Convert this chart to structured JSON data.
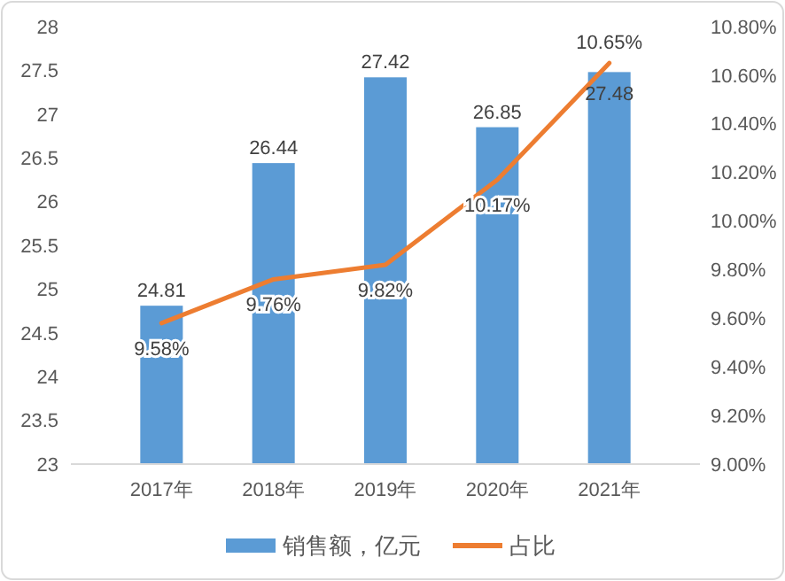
{
  "chart_data": {
    "type": "bar",
    "categories": [
      "2017年",
      "2018年",
      "2019年",
      "2020年",
      "2021年"
    ],
    "series": [
      {
        "name": "销售额，亿元",
        "color": "#5b9bd5",
        "values": [
          24.81,
          26.44,
          27.42,
          26.85,
          27.48
        ],
        "value_labels": [
          "24.81",
          "26.44",
          "27.42",
          "26.85",
          "27.48"
        ]
      },
      {
        "name": "占比",
        "type": "line",
        "axis": "y2",
        "color": "#ed7d31",
        "values": [
          9.58,
          9.76,
          9.82,
          10.17,
          10.65
        ],
        "value_labels": [
          "9.58%",
          "9.76%",
          "9.82%",
          "10.17%",
          "10.65%"
        ]
      }
    ],
    "ylim": [
      23,
      28
    ],
    "yticks": [
      23,
      23.5,
      24,
      24.5,
      25,
      25.5,
      26,
      26.5,
      27,
      27.5,
      28
    ],
    "y2lim": [
      9,
      10.8
    ],
    "y2ticks": [
      {
        "value": 9,
        "label": "9.00%"
      },
      {
        "value": 9.2,
        "label": "9.20%"
      },
      {
        "value": 9.4,
        "label": "9.40%"
      },
      {
        "value": 9.6,
        "label": "9.60%"
      },
      {
        "value": 9.8,
        "label": "9.80%"
      },
      {
        "value": 10,
        "label": "10.00%"
      },
      {
        "value": 10.2,
        "label": "10.20%"
      },
      {
        "value": 10.4,
        "label": "10.40%"
      },
      {
        "value": 10.6,
        "label": "10.60%"
      },
      {
        "value": 10.8,
        "label": "10.80%"
      }
    ],
    "legend": "bottom",
    "marker": "none"
  }
}
